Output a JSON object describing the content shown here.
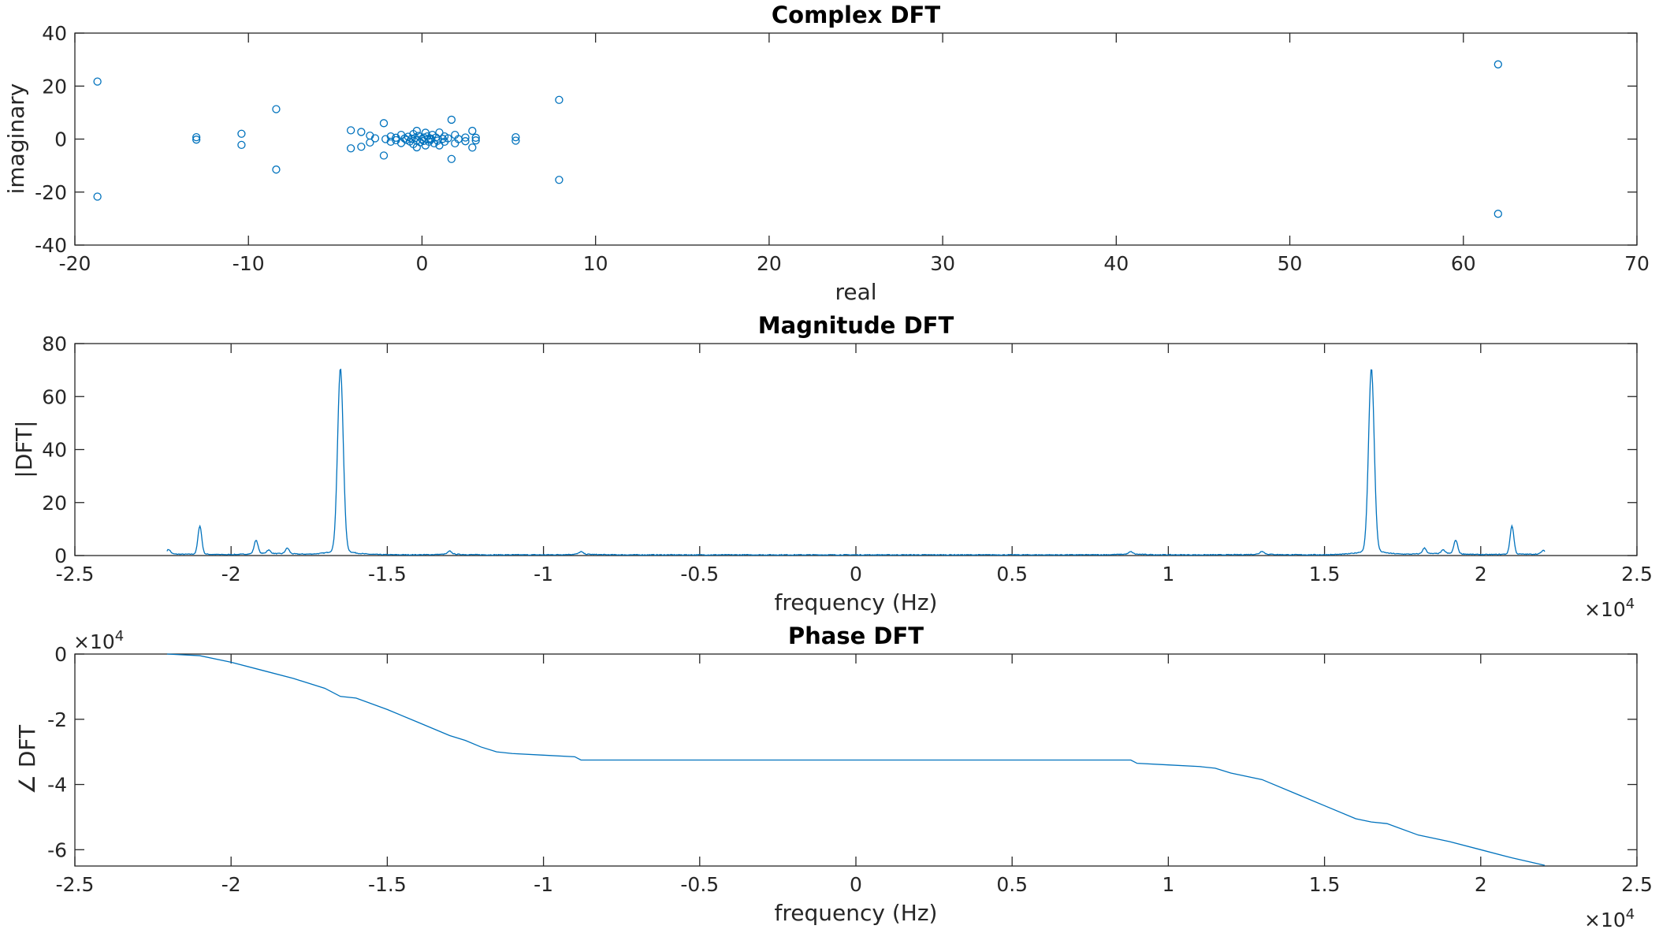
{
  "colors": {
    "series": "#0072BD",
    "axis": "#262626",
    "background": "#ffffff"
  },
  "chart_data": [
    {
      "type": "scatter",
      "title": "Complex DFT",
      "xlabel": "real",
      "ylabel": "imaginary",
      "xlim": [
        -20,
        70
      ],
      "ylim": [
        -40,
        40
      ],
      "xticks": [
        -20,
        -10,
        0,
        10,
        20,
        30,
        40,
        50,
        60,
        70
      ],
      "xtick_labels": [
        "-20",
        "-10",
        "0",
        "10",
        "20",
        "30",
        "40",
        "50",
        "60",
        "70"
      ],
      "yticks": [
        -40,
        -20,
        0,
        20,
        40
      ],
      "ytick_labels": [
        "-40",
        "-20",
        "0",
        "20",
        "40"
      ],
      "marker": "circle-open",
      "points": [
        [
          -18.7,
          21.7
        ],
        [
          -18.7,
          -21.7
        ],
        [
          -13.0,
          0.7
        ],
        [
          -13.0,
          -0.2
        ],
        [
          -10.4,
          2.0
        ],
        [
          -10.4,
          -2.2
        ],
        [
          -8.4,
          11.3
        ],
        [
          -8.4,
          -11.5
        ],
        [
          -4.1,
          3.3
        ],
        [
          -4.1,
          -3.5
        ],
        [
          -3.5,
          2.7
        ],
        [
          -3.5,
          -2.9
        ],
        [
          -3.0,
          1.3
        ],
        [
          -3.0,
          -1.3
        ],
        [
          -2.7,
          0.3
        ],
        [
          -2.2,
          6.0
        ],
        [
          -2.2,
          -6.2
        ],
        [
          -2.1,
          0.0
        ],
        [
          -1.8,
          1.0
        ],
        [
          -1.8,
          -1.0
        ],
        [
          -1.5,
          0.5
        ],
        [
          -1.5,
          -0.4
        ],
        [
          -1.2,
          1.6
        ],
        [
          -1.2,
          -1.5
        ],
        [
          -1.0,
          0.2
        ],
        [
          -0.9,
          -0.3
        ],
        [
          -0.8,
          0.9
        ],
        [
          -0.7,
          -0.9
        ],
        [
          -0.6,
          0.1
        ],
        [
          -0.5,
          1.9
        ],
        [
          -0.5,
          -1.9
        ],
        [
          -0.4,
          0.4
        ],
        [
          -0.3,
          -0.5
        ],
        [
          -0.3,
          3.1
        ],
        [
          -0.3,
          -3.1
        ],
        [
          -0.2,
          1.2
        ],
        [
          -0.1,
          -1.2
        ],
        [
          0.0,
          0.0
        ],
        [
          0.1,
          0.6
        ],
        [
          0.1,
          -0.7
        ],
        [
          0.2,
          2.4
        ],
        [
          0.2,
          -2.4
        ],
        [
          0.3,
          1.0
        ],
        [
          0.4,
          -1.0
        ],
        [
          0.5,
          0.2
        ],
        [
          0.5,
          -0.2
        ],
        [
          0.6,
          1.6
        ],
        [
          0.7,
          -1.6
        ],
        [
          0.8,
          0.6
        ],
        [
          0.9,
          -0.6
        ],
        [
          1.0,
          2.5
        ],
        [
          1.0,
          -2.4
        ],
        [
          1.2,
          0.1
        ],
        [
          1.3,
          1.0
        ],
        [
          1.3,
          -1.0
        ],
        [
          1.5,
          0.3
        ],
        [
          1.7,
          7.3
        ],
        [
          1.7,
          -7.5
        ],
        [
          1.9,
          1.6
        ],
        [
          1.9,
          -1.6
        ],
        [
          2.1,
          0.0
        ],
        [
          2.5,
          0.6
        ],
        [
          2.5,
          -0.8
        ],
        [
          2.9,
          3.1
        ],
        [
          2.9,
          -3.2
        ],
        [
          3.1,
          0.5
        ],
        [
          3.1,
          -0.5
        ],
        [
          5.4,
          0.7
        ],
        [
          5.4,
          -0.6
        ],
        [
          7.9,
          14.8
        ],
        [
          7.9,
          -15.4
        ],
        [
          62.0,
          28.2
        ],
        [
          62.0,
          -28.2
        ]
      ]
    },
    {
      "type": "line",
      "title": "Magnitude DFT",
      "xlabel": "frequency (Hz)",
      "ylabel": "|DFT|",
      "xlim": [
        -25000,
        25000
      ],
      "ylim": [
        0,
        80
      ],
      "x_exponent_label": "×10",
      "x_exponent_power": "4",
      "xticks": [
        -25000,
        -20000,
        -15000,
        -10000,
        -5000,
        0,
        5000,
        10000,
        15000,
        20000,
        25000
      ],
      "xtick_labels": [
        "-2.5",
        "-2",
        "-1.5",
        "-1",
        "-0.5",
        "0",
        "0.5",
        "1",
        "1.5",
        "2",
        "2.5"
      ],
      "yticks": [
        0,
        20,
        40,
        60,
        80
      ],
      "ytick_labels": [
        "0",
        "20",
        "40",
        "60",
        "80"
      ],
      "baseline": 0.3,
      "x_range": [
        -22050,
        22050
      ],
      "peaks": [
        {
          "x": -16500,
          "y": 68
        },
        {
          "x": 16500,
          "y": 68
        },
        {
          "x": -21000,
          "y": 10.5
        },
        {
          "x": 21000,
          "y": 10.5
        },
        {
          "x": -19200,
          "y": 5
        },
        {
          "x": 19200,
          "y": 5
        },
        {
          "x": -18200,
          "y": 2
        },
        {
          "x": 18200,
          "y": 2
        },
        {
          "x": -22000,
          "y": 1.6
        },
        {
          "x": 22000,
          "y": 1.2
        },
        {
          "x": -13000,
          "y": 1
        },
        {
          "x": 13000,
          "y": 1
        },
        {
          "x": -8800,
          "y": 0.8
        },
        {
          "x": 8800,
          "y": 0.8
        },
        {
          "x": -18800,
          "y": 1.2
        },
        {
          "x": 18800,
          "y": 1.2
        }
      ]
    },
    {
      "type": "line",
      "title": "Phase DFT",
      "xlabel": "frequency (Hz)",
      "ylabel": "∠ DFT",
      "xlim": [
        -25000,
        25000
      ],
      "ylim": [
        -65000,
        0
      ],
      "x_exponent_label": "×10",
      "x_exponent_power": "4",
      "y_exponent_label": "×10",
      "y_exponent_power": "4",
      "xticks": [
        -25000,
        -20000,
        -15000,
        -10000,
        -5000,
        0,
        5000,
        10000,
        15000,
        20000,
        25000
      ],
      "xtick_labels": [
        "-2.5",
        "-2",
        "-1.5",
        "-1",
        "-0.5",
        "0",
        "0.5",
        "1",
        "1.5",
        "2",
        "2.5"
      ],
      "yticks": [
        -60000,
        -40000,
        -20000,
        0
      ],
      "ytick_labels": [
        "-6",
        "-4",
        "-2",
        "0"
      ],
      "points": [
        [
          -22050,
          0
        ],
        [
          -21000,
          -500
        ],
        [
          -20000,
          -2500
        ],
        [
          -19000,
          -5000
        ],
        [
          -18000,
          -7500
        ],
        [
          -17000,
          -10500
        ],
        [
          -16500,
          -13000
        ],
        [
          -16000,
          -13500
        ],
        [
          -15000,
          -17000
        ],
        [
          -14000,
          -21000
        ],
        [
          -13000,
          -25000
        ],
        [
          -12500,
          -26500
        ],
        [
          -12000,
          -28500
        ],
        [
          -11500,
          -30000
        ],
        [
          -11000,
          -30500
        ],
        [
          -10000,
          -31000
        ],
        [
          -9000,
          -31500
        ],
        [
          -8800,
          -32500
        ],
        [
          -5000,
          -32500
        ],
        [
          0,
          -32500
        ],
        [
          5000,
          -32500
        ],
        [
          8800,
          -32500
        ],
        [
          9000,
          -33500
        ],
        [
          10000,
          -34000
        ],
        [
          11000,
          -34500
        ],
        [
          11500,
          -35000
        ],
        [
          12000,
          -36500
        ],
        [
          13000,
          -38500
        ],
        [
          14000,
          -42500
        ],
        [
          15000,
          -46500
        ],
        [
          16000,
          -50500
        ],
        [
          16500,
          -51500
        ],
        [
          17000,
          -52000
        ],
        [
          18000,
          -55500
        ],
        [
          19000,
          -57500
        ],
        [
          20000,
          -60000
        ],
        [
          21000,
          -62500
        ],
        [
          22050,
          -64800
        ]
      ]
    }
  ]
}
